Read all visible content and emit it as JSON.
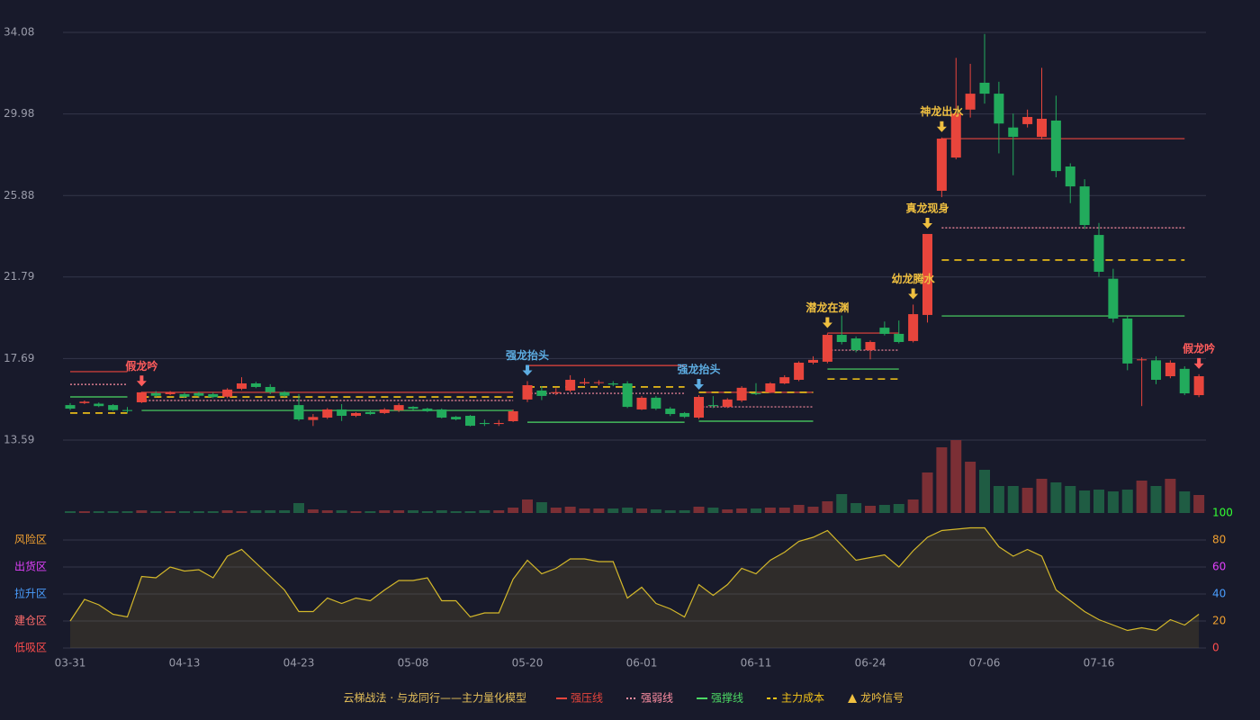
{
  "chart_data": {
    "type": "candlestick",
    "categories": [
      "03-31",
      null,
      null,
      null,
      null,
      null,
      null,
      null,
      "04-13",
      null,
      null,
      null,
      null,
      null,
      null,
      null,
      "04-23",
      null,
      null,
      null,
      null,
      null,
      null,
      null,
      "05-08",
      null,
      null,
      null,
      null,
      null,
      null,
      null,
      "05-20",
      null,
      null,
      null,
      null,
      null,
      null,
      null,
      "06-01",
      null,
      null,
      null,
      null,
      null,
      null,
      null,
      "06-11",
      null,
      null,
      null,
      null,
      null,
      null,
      null,
      "06-24",
      null,
      null,
      null,
      null,
      null,
      null,
      null,
      "07-06",
      null,
      null,
      null,
      null,
      null,
      null,
      null,
      "07-16",
      null,
      null,
      null,
      null,
      null,
      null,
      null
    ],
    "ylim": [
      13.59,
      34.08
    ],
    "yticks": [
      34.08,
      29.98,
      25.88,
      21.79,
      17.69,
      13.59
    ],
    "up_color": "#e8453c",
    "down_color": "#22ab5c",
    "open": [
      15.35,
      15.45,
      15.42,
      15.35,
      15.1,
      15.49,
      15.95,
      15.9,
      15.9,
      15.95,
      15.9,
      15.77,
      16.17,
      16.44,
      16.26,
      16.0,
      15.35,
      14.6,
      14.72,
      15.13,
      14.81,
      15.0,
      14.95,
      15.08,
      15.26,
      15.17,
      15.13,
      14.76,
      14.81,
      14.45,
      14.4,
      14.54,
      15.63,
      16.08,
      15.95,
      16.08,
      16.44,
      16.5,
      16.44,
      16.44,
      15.13,
      15.72,
      15.17,
      14.95,
      14.72,
      15.35,
      15.26,
      15.58,
      15.95,
      15.99,
      16.44,
      16.62,
      17.48,
      17.53,
      18.88,
      18.7,
      18.11,
      19.24,
      18.93,
      18.57,
      19.88,
      26.12,
      27.79,
      30.2,
      31.55,
      31.0,
      29.3,
      29.47,
      28.83,
      29.65,
      27.34,
      26.34,
      23.9,
      21.7,
      19.7,
      17.6,
      17.6,
      16.8,
      17.17,
      15.85
    ],
    "close": [
      15.17,
      15.52,
      15.3,
      15.1,
      15.05,
      15.99,
      15.82,
      15.98,
      15.77,
      15.82,
      15.75,
      16.13,
      16.44,
      16.26,
      16.0,
      15.82,
      14.63,
      14.75,
      15.13,
      14.81,
      14.95,
      14.9,
      15.13,
      15.35,
      15.17,
      15.04,
      14.72,
      14.63,
      14.31,
      14.4,
      14.45,
      15.04,
      16.35,
      15.81,
      16.0,
      16.62,
      16.5,
      16.5,
      16.38,
      15.26,
      15.72,
      15.17,
      14.9,
      14.76,
      15.76,
      15.3,
      15.63,
      16.22,
      15.9,
      16.44,
      16.75,
      17.48,
      17.62,
      18.88,
      18.52,
      18.11,
      18.52,
      18.93,
      18.52,
      19.92,
      23.95,
      28.74,
      30.0,
      31.0,
      31.0,
      29.5,
      28.83,
      29.83,
      29.74,
      27.11,
      26.34,
      24.4,
      22.05,
      19.7,
      17.44,
      17.65,
      16.62,
      17.48,
      15.94,
      16.8
    ],
    "high": [
      15.45,
      15.58,
      15.48,
      15.4,
      15.25,
      16.02,
      16.05,
      16.05,
      15.98,
      16.02,
      15.98,
      16.2,
      16.75,
      16.52,
      16.4,
      16.05,
      15.9,
      14.9,
      15.2,
      15.4,
      15.0,
      15.05,
      15.2,
      15.45,
      15.3,
      15.22,
      15.18,
      14.8,
      14.85,
      14.62,
      14.6,
      15.13,
      16.55,
      16.3,
      16.2,
      16.85,
      16.7,
      16.6,
      16.55,
      16.55,
      15.8,
      15.8,
      15.25,
      15.0,
      15.85,
      15.8,
      15.7,
      16.3,
      16.45,
      16.5,
      16.85,
      17.55,
      17.8,
      18.95,
      19.85,
      18.8,
      18.6,
      19.55,
      19.6,
      20.4,
      23.95,
      28.8,
      32.8,
      32.5,
      34.0,
      31.6,
      30.0,
      30.2,
      32.3,
      30.9,
      27.5,
      26.7,
      24.5,
      22.2,
      19.8,
      17.75,
      17.8,
      17.6,
      17.3,
      16.9
    ],
    "low": [
      15.1,
      15.4,
      15.25,
      15.05,
      14.95,
      15.45,
      15.75,
      15.85,
      15.72,
      15.75,
      15.7,
      15.7,
      16.1,
      16.2,
      15.9,
      15.75,
      14.55,
      14.3,
      14.65,
      14.55,
      14.75,
      14.85,
      14.9,
      15.0,
      15.1,
      15.0,
      14.68,
      14.58,
      14.28,
      14.3,
      14.3,
      14.5,
      15.5,
      15.6,
      15.85,
      16.0,
      16.35,
      16.35,
      16.3,
      15.2,
      15.1,
      15.1,
      14.8,
      14.7,
      14.65,
      15.2,
      15.2,
      15.5,
      15.85,
      15.95,
      16.4,
      16.55,
      17.4,
      17.45,
      18.4,
      18.0,
      17.65,
      18.85,
      18.45,
      18.5,
      19.5,
      25.8,
      27.7,
      29.8,
      30.5,
      28.0,
      26.9,
      29.3,
      28.7,
      26.8,
      25.5,
      24.2,
      21.8,
      19.5,
      17.1,
      15.3,
      16.4,
      16.7,
      15.85,
      15.75
    ],
    "volume": {
      "up_color": "#7b2f35",
      "down_color": "#1f5c43",
      "values": [
        2,
        2,
        2,
        2,
        2,
        3,
        2,
        2,
        2,
        2,
        2,
        3,
        2,
        3,
        3,
        3,
        11,
        4,
        3,
        3,
        2,
        2,
        3,
        3,
        3,
        2,
        3,
        2,
        2,
        3,
        3,
        6,
        15,
        12,
        6,
        7,
        5,
        5,
        5,
        6,
        5,
        4,
        3,
        3,
        7,
        6,
        4,
        5,
        5,
        6,
        6,
        9,
        7,
        13,
        21,
        11,
        8,
        9,
        10,
        15,
        45,
        73,
        81,
        57,
        48,
        30,
        30,
        28,
        38,
        34,
        30,
        25,
        26,
        24,
        26,
        36,
        30,
        38,
        24,
        20
      ]
    },
    "levels": [
      {
        "name": "强压线",
        "color": "#e8453c",
        "style": "solid",
        "segments": [
          {
            "start": 0,
            "end": 4,
            "value": 17.03
          },
          {
            "start": 5,
            "end": 31,
            "value": 15.99
          },
          {
            "start": 32,
            "end": 43,
            "value": 17.34
          },
          {
            "start": 44,
            "end": 52,
            "value": 15.99
          },
          {
            "start": 53,
            "end": 58,
            "value": 18.97
          },
          {
            "start": 61,
            "end": 78,
            "value": 28.74
          }
        ]
      },
      {
        "name": "强弱线",
        "color": "#ff8fa3",
        "style": "dotted",
        "segments": [
          {
            "start": 0,
            "end": 4,
            "value": 16.39
          },
          {
            "start": 5,
            "end": 31,
            "value": 15.58
          },
          {
            "start": 32,
            "end": 43,
            "value": 15.94
          },
          {
            "start": 44,
            "end": 52,
            "value": 15.26
          },
          {
            "start": 53,
            "end": 58,
            "value": 18.11
          },
          {
            "start": 61,
            "end": 78,
            "value": 24.26
          }
        ]
      },
      {
        "name": "强撑线",
        "color": "#4cd964",
        "style": "solid",
        "segments": [
          {
            "start": 0,
            "end": 4,
            "value": 15.76
          },
          {
            "start": 5,
            "end": 31,
            "value": 15.08
          },
          {
            "start": 32,
            "end": 43,
            "value": 14.49
          },
          {
            "start": 44,
            "end": 52,
            "value": 14.54
          },
          {
            "start": 53,
            "end": 58,
            "value": 17.16
          },
          {
            "start": 61,
            "end": 78,
            "value": 19.83
          }
        ]
      },
      {
        "name": "主力成本",
        "color": "#f5c518",
        "style": "dashed",
        "segments": [
          {
            "start": 0,
            "end": 4,
            "value": 14.95
          },
          {
            "start": 5,
            "end": 31,
            "value": 15.76
          },
          {
            "start": 32,
            "end": 43,
            "value": 16.26
          },
          {
            "start": 44,
            "end": 52,
            "value": 15.99
          },
          {
            "start": 53,
            "end": 58,
            "value": 16.66
          },
          {
            "start": 61,
            "end": 78,
            "value": 22.64
          }
        ]
      }
    ],
    "signals": [
      {
        "label": "假龙吟",
        "index": 5,
        "color": "#ff5c5c"
      },
      {
        "label": "强龙抬头",
        "index": 32,
        "color": "#5dade2"
      },
      {
        "label": "强龙抬头",
        "index": 44,
        "color": "#5dade2"
      },
      {
        "label": "潜龙在渊",
        "index": 53,
        "color": "#f0c040"
      },
      {
        "label": "幼龙腾水",
        "index": 59,
        "color": "#f0c040"
      },
      {
        "label": "真龙现身",
        "index": 60,
        "color": "#f0c040"
      },
      {
        "label": "神龙出水",
        "index": 61,
        "color": "#f0c040"
      },
      {
        "label": "假龙吟",
        "index": 79,
        "color": "#ff5c5c"
      }
    ],
    "indicator": {
      "color": "#d4b82a",
      "ylim": [
        0,
        100
      ],
      "yticks": [
        100,
        80,
        60,
        40,
        20,
        0
      ],
      "ytick_colors": [
        "#33ff33",
        "#f0a030",
        "#e040fb",
        "#4a9eff",
        "#f0a030",
        "#ff4d4d"
      ],
      "zones": [
        {
          "label": "风险区",
          "value": 80,
          "color": "#f0a030"
        },
        {
          "label": "出货区",
          "value": 60,
          "color": "#e040fb"
        },
        {
          "label": "拉升区",
          "value": 40,
          "color": "#4a9eff"
        },
        {
          "label": "建仓区",
          "value": 20,
          "color": "#ff6b6b"
        },
        {
          "label": "低吸区",
          "value": 0,
          "color": "#ff4d4d"
        }
      ],
      "values": [
        20,
        36,
        32,
        25,
        23,
        53,
        52,
        60,
        57,
        58,
        52,
        68,
        73,
        63,
        53,
        43,
        27,
        27,
        37,
        33,
        37,
        35,
        43,
        50,
        50,
        52,
        35,
        35,
        23,
        26,
        26,
        51,
        65,
        55,
        59,
        66,
        66,
        64,
        64,
        37,
        45,
        33,
        29,
        23,
        47,
        39,
        47,
        59,
        55,
        65,
        71,
        79,
        82,
        87,
        76,
        65,
        67,
        69,
        60,
        72,
        82,
        87,
        88,
        89,
        89,
        75,
        68,
        73,
        68,
        43,
        35,
        27,
        21,
        17,
        13,
        15,
        13,
        21,
        17,
        25
      ]
    },
    "legend": {
      "title": "云梯战法 · 与龙同行——主力量化模型",
      "signal_name": "龙吟信号",
      "signal_color": "#f0c040"
    }
  }
}
